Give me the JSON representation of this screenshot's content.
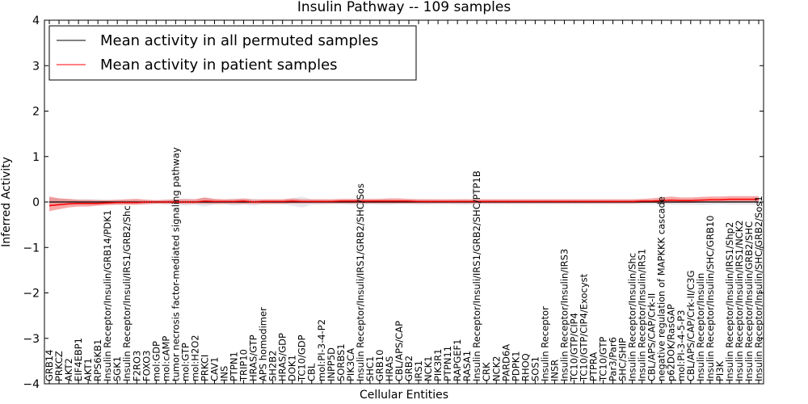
{
  "chart_data": {
    "type": "line",
    "title": "Insulin Pathway -- 109 samples",
    "xlabel": "Cellular Entities",
    "ylabel": "Inferred Activity",
    "ylim": [
      -4,
      4
    ],
    "yticks": [
      "−4",
      "−3",
      "−2",
      "−1",
      "0",
      "1",
      "2",
      "3",
      "4"
    ],
    "legend_location": "top-left",
    "categories": [
      "GRB14",
      "PRKCZ",
      "AKT2",
      "EIF4EBP1",
      "AKT1",
      "RPS6KB1",
      "Insulin Receptor/Insulin/GRB14/PDK1",
      "SGK1",
      "Insulin Receptor/Insuli/IRS1/GRB2/Shc",
      "F2RO3",
      "FOXO3",
      "mol:GDP",
      "mol:cAMP",
      "tumor necrosis factor-mediated signaling pathway",
      "mol:GTP",
      "mol:H2O2",
      "PRKCI",
      "CAV1",
      "INS",
      "PTPN1",
      "TRIP10",
      "HRAS/GTP",
      "APS homodimer",
      "SH2B2",
      "HRAS/GDP",
      "DOK1",
      "TC10/GDP",
      "CBL",
      "mol:PI-3-4-P2",
      "INPP5D",
      "SORBS1",
      "PIK3CA",
      "Insulin Receptor/Insuli/IRS1/GRB2/SHC/Sos",
      "SHC1",
      "GRB10",
      "HRAS",
      "CBL/APS/CAP",
      "GRB2",
      "IRS1",
      "NCK1",
      "PIK3R1",
      "PTPN11",
      "RAPGEF1",
      "RASA1",
      "Insulin Receptor/Insuli/IRS1/GRB2/SHC/PTP1B",
      "CRK",
      "NCK2",
      "PARD6A",
      "PDPK1",
      "RHOQ",
      "SOS1",
      "Insulin Receptor",
      "INSR",
      "Insulin Receptor/Insulin/IRS3",
      "TC10/GTP/CIP4",
      "TC10/GTP/CIP4/Exocyst",
      "PTPRA",
      "TC10/GTP",
      "Par3/Par6",
      "SHC/SHIP",
      "Insulin Receptor/Insulin/Shc",
      "Insulin Receptor/Insulin/IRS1",
      "CBL/APS/CAP/Crk-II",
      "negative regulation of MAPKKK cascade",
      "p62DOK/RasGAP",
      "mol:PI-3-4-5-P3",
      "CBL/APS/CAP/Crk-II/C3G",
      "Insulin Receptor/Insulin",
      "Insulin Receptor/Insulin/SHC/GRB10",
      "PI3K",
      "Insulin Receptor/Insulin/IRS1/Shp2",
      "Insulin Receptor/Insulin/IRS1/NCK2",
      "Insulin Receptor/Insulin/GRB2/SHC",
      "Insulin Receptor/Insulin/SHC/GRB2/Sos1"
    ],
    "series": [
      {
        "name": "Mean activity in all permuted samples",
        "color": "#000000",
        "values": [
          0,
          0,
          0,
          0,
          0,
          0,
          0,
          0,
          0,
          0,
          0,
          0,
          0,
          0,
          0,
          0,
          0,
          0,
          0,
          0,
          0,
          0,
          0,
          0,
          0,
          0,
          0,
          0,
          0,
          0,
          0,
          0,
          0,
          0,
          0,
          0,
          0,
          0,
          0,
          0,
          0,
          0,
          0,
          0,
          0,
          0,
          0,
          0,
          0,
          0,
          0,
          0,
          0,
          0,
          0,
          0,
          0,
          0,
          0,
          0,
          0,
          0,
          0,
          0,
          0,
          0,
          0,
          0,
          0,
          0,
          0,
          0,
          0,
          0
        ],
        "band_lower": [
          -0.1,
          -0.08,
          -0.06,
          -0.06,
          -0.06,
          -0.06,
          -0.05,
          -0.05,
          -0.05,
          -0.05,
          -0.05,
          -0.04,
          -0.05,
          -0.06,
          -0.08,
          -0.06,
          -0.1,
          -0.06,
          -0.05,
          -0.08,
          -0.06,
          -0.08,
          -0.05,
          -0.05,
          -0.05,
          -0.08,
          -0.12,
          -0.06,
          -0.06,
          -0.05,
          -0.05,
          -0.06,
          -0.06,
          -0.05,
          -0.06,
          -0.06,
          -0.05,
          -0.05,
          -0.06,
          -0.06,
          -0.05,
          -0.05,
          -0.06,
          -0.06,
          -0.05,
          -0.05,
          -0.05,
          -0.05,
          -0.05,
          -0.05,
          -0.05,
          -0.05,
          -0.05,
          -0.05,
          -0.05,
          -0.05,
          -0.05,
          -0.05,
          -0.05,
          -0.05,
          -0.05,
          -0.05,
          -0.05,
          -0.05,
          -0.06,
          -0.06,
          -0.06,
          -0.07,
          -0.06,
          -0.05,
          -0.06,
          -0.06,
          -0.06,
          -0.06
        ],
        "band_upper": [
          0.1,
          0.08,
          0.06,
          0.06,
          0.06,
          0.06,
          0.05,
          0.05,
          0.05,
          0.05,
          0.05,
          0.04,
          0.05,
          0.06,
          0.08,
          0.06,
          0.1,
          0.06,
          0.05,
          0.08,
          0.06,
          0.08,
          0.05,
          0.05,
          0.05,
          0.08,
          0.12,
          0.06,
          0.06,
          0.05,
          0.05,
          0.06,
          0.06,
          0.05,
          0.06,
          0.06,
          0.05,
          0.05,
          0.06,
          0.06,
          0.05,
          0.05,
          0.06,
          0.06,
          0.05,
          0.05,
          0.05,
          0.05,
          0.05,
          0.05,
          0.05,
          0.05,
          0.05,
          0.05,
          0.05,
          0.05,
          0.05,
          0.05,
          0.05,
          0.05,
          0.05,
          0.05,
          0.05,
          0.05,
          0.06,
          0.06,
          0.06,
          0.07,
          0.06,
          0.05,
          0.06,
          0.06,
          0.06,
          0.06
        ]
      },
      {
        "name": "Mean activity in patient samples",
        "color": "#ff0000",
        "values": [
          -0.08,
          -0.06,
          -0.04,
          -0.03,
          -0.03,
          -0.03,
          -0.02,
          -0.01,
          -0.01,
          -0.01,
          0,
          0,
          0,
          0,
          0,
          0,
          0.02,
          0.01,
          0.01,
          0.01,
          0.02,
          0,
          0.01,
          0.01,
          0.01,
          0.02,
          0.01,
          0.01,
          0.01,
          0.01,
          0.02,
          0.02,
          0.02,
          0.02,
          0.02,
          0.02,
          0.02,
          0.02,
          0.01,
          0.01,
          0.01,
          0.01,
          0.01,
          0.01,
          0.01,
          0.01,
          0.01,
          0.01,
          0.01,
          0.01,
          0.01,
          0.01,
          0.01,
          0.01,
          0.01,
          0.01,
          0.01,
          0.01,
          0.01,
          0.01,
          0.01,
          0.02,
          0.02,
          0.03,
          0.04,
          0.03,
          0.03,
          0.04,
          0.05,
          0.05,
          0.06,
          0.06,
          0.06,
          0.06
        ],
        "band_lower": [
          -0.2,
          -0.16,
          -0.12,
          -0.1,
          -0.1,
          -0.08,
          -0.07,
          -0.06,
          -0.06,
          -0.06,
          -0.05,
          -0.04,
          -0.04,
          -0.04,
          -0.04,
          -0.04,
          -0.04,
          -0.04,
          -0.04,
          -0.04,
          -0.04,
          -0.04,
          -0.04,
          -0.04,
          -0.04,
          -0.03,
          -0.03,
          -0.03,
          -0.03,
          -0.03,
          -0.03,
          -0.03,
          -0.03,
          -0.03,
          -0.03,
          -0.03,
          -0.03,
          -0.03,
          -0.03,
          -0.03,
          -0.03,
          -0.03,
          -0.03,
          -0.03,
          -0.03,
          -0.03,
          -0.03,
          -0.03,
          -0.03,
          -0.03,
          -0.03,
          -0.03,
          -0.03,
          -0.03,
          -0.03,
          -0.03,
          -0.03,
          -0.03,
          -0.03,
          -0.03,
          -0.03,
          -0.02,
          -0.02,
          -0.02,
          -0.02,
          -0.02,
          -0.02,
          -0.01,
          -0.01,
          -0.01,
          -0.01,
          -0.01,
          -0.01,
          -0.01
        ],
        "band_upper": [
          0.12,
          0.08,
          0.07,
          0.05,
          0.05,
          0.04,
          0.04,
          0.05,
          0.06,
          0.07,
          0.05,
          0.04,
          0.05,
          0.06,
          0.06,
          0.06,
          0.1,
          0.07,
          0.06,
          0.06,
          0.08,
          0.05,
          0.06,
          0.06,
          0.06,
          0.08,
          0.06,
          0.06,
          0.06,
          0.06,
          0.07,
          0.07,
          0.07,
          0.07,
          0.07,
          0.08,
          0.08,
          0.07,
          0.06,
          0.06,
          0.06,
          0.06,
          0.06,
          0.06,
          0.06,
          0.06,
          0.06,
          0.06,
          0.06,
          0.06,
          0.06,
          0.06,
          0.06,
          0.06,
          0.06,
          0.06,
          0.06,
          0.06,
          0.06,
          0.06,
          0.06,
          0.07,
          0.08,
          0.1,
          0.12,
          0.1,
          0.1,
          0.11,
          0.12,
          0.12,
          0.13,
          0.13,
          0.13,
          0.13
        ]
      }
    ]
  }
}
